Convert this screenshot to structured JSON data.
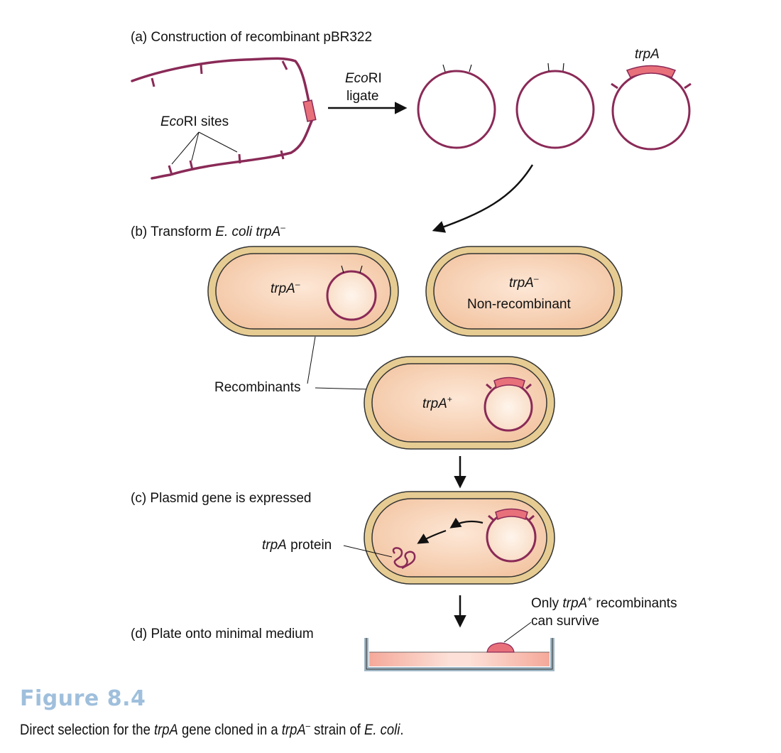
{
  "panel_a": {
    "title": "(a) Construction of recombinant pBR322",
    "eco_ri_sites_italic": "Eco",
    "eco_ri_sites_rest": "RI sites",
    "arrow_label_line1_italic": "Eco",
    "arrow_label_line1_rest": "RI",
    "arrow_label_line2": "ligate",
    "gene_label": "trpA"
  },
  "panel_b": {
    "title_prefix": "(b) Transform ",
    "title_organism": "E. coli",
    "title_gene": "trpA",
    "title_sup": "–",
    "cell1_gene": "trpA",
    "cell1_sup": "–",
    "cell2_gene": "trpA",
    "cell2_sup": "–",
    "cell2_text": "Non-recombinant",
    "recombinants_label": "Recombinants",
    "cell3_gene": "trpA",
    "cell3_sup": "+"
  },
  "panel_c": {
    "title": "(c) Plasmid gene is expressed",
    "protein_gene": "trpA",
    "protein_rest": " protein"
  },
  "panel_d": {
    "title": "(d) Plate onto minimal medium",
    "note_prefix": "Only ",
    "note_gene": "trpA",
    "note_sup": "+",
    "note_rest": " recombinants",
    "note_line2": "can survive"
  },
  "figure": {
    "label": "Figure 8.4",
    "caption_1": "Direct selection for the ",
    "caption_gene1": "trpA",
    "caption_2": " gene cloned in a ",
    "caption_gene2": "trpA",
    "caption_sup": "–",
    "caption_3": " strain of ",
    "caption_organism": "E. coli",
    "caption_4": "."
  },
  "colors": {
    "dna_strand": "#8a2a57",
    "insert_fill": "#e8707a",
    "cell_fill": "#f6cfb0",
    "cell_wall": "#e6cc92",
    "plate_wall": "#9fb7c6",
    "caption_label": "#9fbfdc"
  }
}
